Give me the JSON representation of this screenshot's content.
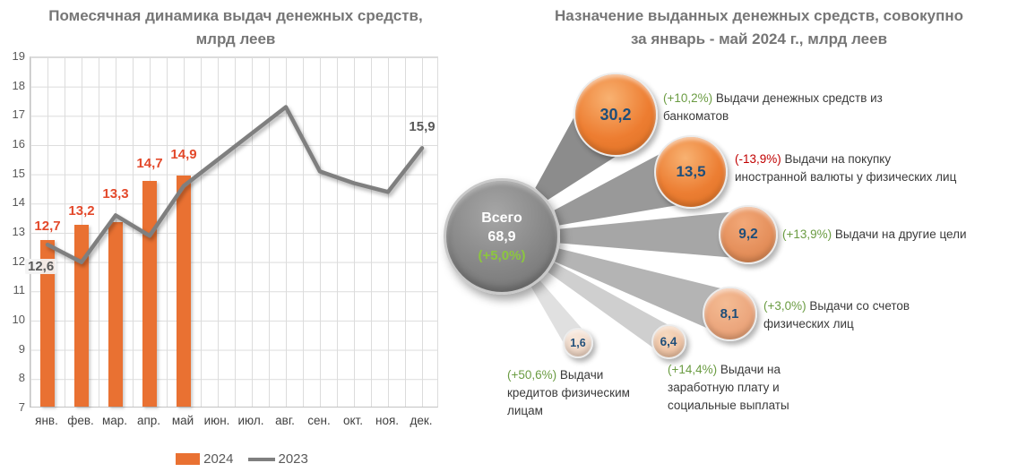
{
  "colors": {
    "bar_2024": "#E97132",
    "line_2023": "#7F7F7F",
    "bar_label": "#E3492B",
    "positive_change": "#6B9C43",
    "negative_change": "#C00000",
    "bubble_value_text": "#1F4E79",
    "center_bubble_fill": "#808080",
    "center_change_text": "#8CC63F",
    "title_text": "#767676"
  },
  "chart_data": [
    {
      "type": "bar",
      "title": "Помесячная динамика выдач денежных средств, млрд леев",
      "title_lines": [
        "Помесячная динамика выдач денежных средств,",
        "млрд леев"
      ],
      "categories": [
        "янв.",
        "фев.",
        "мар.",
        "апр.",
        "май",
        "июн.",
        "июл.",
        "авг.",
        "сен.",
        "окт.",
        "ноя.",
        "дек."
      ],
      "series": [
        {
          "name": "2024",
          "type": "bar",
          "color": "#E97132",
          "values": [
            12.7,
            13.2,
            13.3,
            14.7,
            14.9,
            null,
            null,
            null,
            null,
            null,
            null,
            null
          ],
          "labels": [
            "12,7",
            "13,2",
            "13,3",
            "14,7",
            "14,9"
          ]
        },
        {
          "name": "2023",
          "type": "line",
          "color": "#7F7F7F",
          "values": [
            12.6,
            12.0,
            13.6,
            12.9,
            14.6,
            15.5,
            16.4,
            17.3,
            15.1,
            14.7,
            14.4,
            15.9
          ],
          "first_label": "12,6",
          "last_label": "15,9"
        }
      ],
      "ylim": [
        7,
        19
      ],
      "ytick_step": 1,
      "grid": true,
      "legend_position": "bottom"
    },
    {
      "type": "bubble",
      "title": "Назначение выданных денежных средств, совокупно за январь - май 2024 г., млрд леев",
      "title_lines": [
        "Назначение выданных денежных средств, совокупно",
        "за январь - май 2024 г., млрд леев"
      ],
      "center": {
        "label": "Всего",
        "value": "68,9",
        "value_num": 68.9,
        "change": "(+5,0%)"
      },
      "nodes": [
        {
          "value": "30,2",
          "value_num": 30.2,
          "change": "(+10,2%)",
          "direction": "up",
          "label": "Выдачи денежных средств из банкоматов",
          "label_lines": [
            "Выдачи денежных средств из",
            "банкоматов"
          ]
        },
        {
          "value": "13,5",
          "value_num": 13.5,
          "change": "(-13,9%)",
          "direction": "down",
          "label": "Выдачи на покупку иностранной валюты у физических лиц",
          "label_lines": [
            "Выдачи на покупку",
            "иностранной валюты у физических лиц"
          ]
        },
        {
          "value": "9,2",
          "value_num": 9.2,
          "change": "(+13,9%)",
          "direction": "up",
          "label": "Выдачи на другие цели",
          "label_lines": [
            "Выдачи на другие цели"
          ]
        },
        {
          "value": "8,1",
          "value_num": 8.1,
          "change": "(+3,0%)",
          "direction": "up",
          "label": "Выдачи со счетов физических лиц",
          "label_lines": [
            "Выдачи со счетов",
            "физических лиц"
          ]
        },
        {
          "value": "6,4",
          "value_num": 6.4,
          "change": "(+14,4%)",
          "direction": "up",
          "label": "Выдачи на заработную плату и социальные выплаты",
          "label_lines": [
            "Выдачи на",
            "заработную плату и",
            "социальные выплаты"
          ]
        },
        {
          "value": "1,6",
          "value_num": 1.6,
          "change": "(+50,6%)",
          "direction": "up",
          "label": "Выдачи кредитов физическим лицам",
          "label_lines": [
            "Выдачи",
            "кредитов физическим",
            "лицам"
          ]
        }
      ]
    }
  ]
}
